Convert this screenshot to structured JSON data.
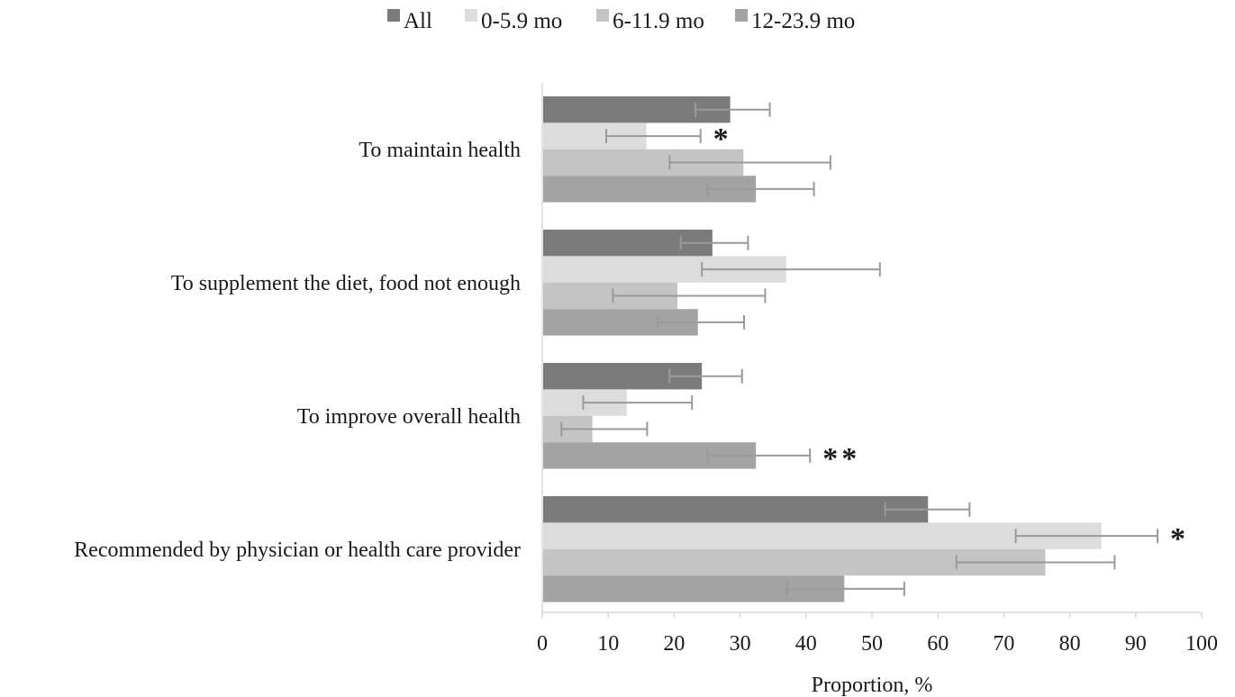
{
  "chart_data": {
    "type": "bar",
    "orientation": "horizontal",
    "categories": [
      "To maintain health",
      "To supplement the diet, food not enough",
      "To improve overall health",
      "Recommended by physician or health care provider"
    ],
    "series": [
      {
        "name": "All",
        "color": "#7b7b7b",
        "values": [
          28.5,
          25.8,
          24.2,
          58.5
        ],
        "error_low": [
          23.2,
          21.0,
          19.3,
          52.0
        ],
        "error_high": [
          34.5,
          31.2,
          30.3,
          64.8
        ]
      },
      {
        "name": "0-5.9 mo",
        "color": "#dcdcdc",
        "values": [
          15.8,
          37.0,
          12.8,
          84.8
        ],
        "error_low": [
          9.7,
          24.2,
          6.2,
          71.8
        ],
        "error_high": [
          24.0,
          51.2,
          22.7,
          93.3
        ]
      },
      {
        "name": "6-11.9 mo",
        "color": "#c4c4c4",
        "values": [
          30.5,
          20.5,
          7.6,
          76.3
        ],
        "error_low": [
          19.3,
          10.7,
          2.9,
          62.8
        ],
        "error_high": [
          43.7,
          33.8,
          15.9,
          86.8
        ]
      },
      {
        "name": "12-23.9 mo",
        "color": "#a3a3a3",
        "values": [
          32.4,
          23.6,
          32.4,
          45.8
        ],
        "error_low": [
          25.0,
          17.5,
          25.0,
          37.0
        ],
        "error_high": [
          41.2,
          30.6,
          40.6,
          54.9
        ]
      }
    ],
    "annotations": [
      {
        "category_index": 0,
        "series_index": 1,
        "text": "*"
      },
      {
        "category_index": 2,
        "series_index": 3,
        "text": "**"
      },
      {
        "category_index": 3,
        "series_index": 1,
        "text": "*"
      }
    ],
    "xlabel": "Proportion, %",
    "xlim": [
      0,
      100
    ],
    "xticks": [
      0,
      10,
      20,
      30,
      40,
      50,
      60,
      70,
      80,
      90,
      100
    ],
    "grid": false,
    "legend_position": "top",
    "error_bar_color": "#9a9a9a"
  }
}
